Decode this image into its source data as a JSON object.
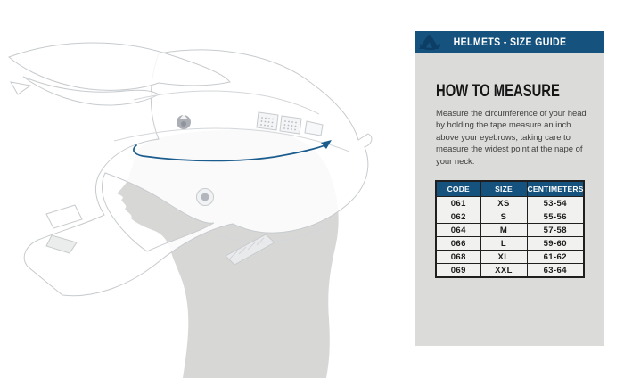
{
  "panel": {
    "header": {
      "title": "HELMETS - SIZE GUIDE"
    },
    "how_to_measure": {
      "title": "HOW TO MEASURE",
      "body": "Measure the circumference of your head by holding the tape measure an inch above your eyebrows, taking care to measure the widest point at the nape of your neck."
    },
    "size_table": {
      "columns": [
        "CODE",
        "SIZE",
        "CENTIMETERS"
      ],
      "rows": [
        [
          "061",
          "XS",
          "53-54"
        ],
        [
          "062",
          "S",
          "55-56"
        ],
        [
          "064",
          "M",
          "57-58"
        ],
        [
          "066",
          "L",
          "59-60"
        ],
        [
          "068",
          "XL",
          "61-62"
        ],
        [
          "069",
          "XXL",
          "63-64"
        ]
      ]
    }
  },
  "illustration": {
    "subject": "side view of a motocross helmet worn over a head silhouette",
    "measure_line": "elliptical tape-measure line around helmet circumference"
  },
  "colors": {
    "accent_blue": "#15537e",
    "logo_navy": "#0d3e66",
    "panel_gray": "#dbdbd9",
    "measure_line_blue": "#1b5c8e",
    "table_border": "#1f1f1f",
    "table_row_bg": "#f1f1ef"
  }
}
